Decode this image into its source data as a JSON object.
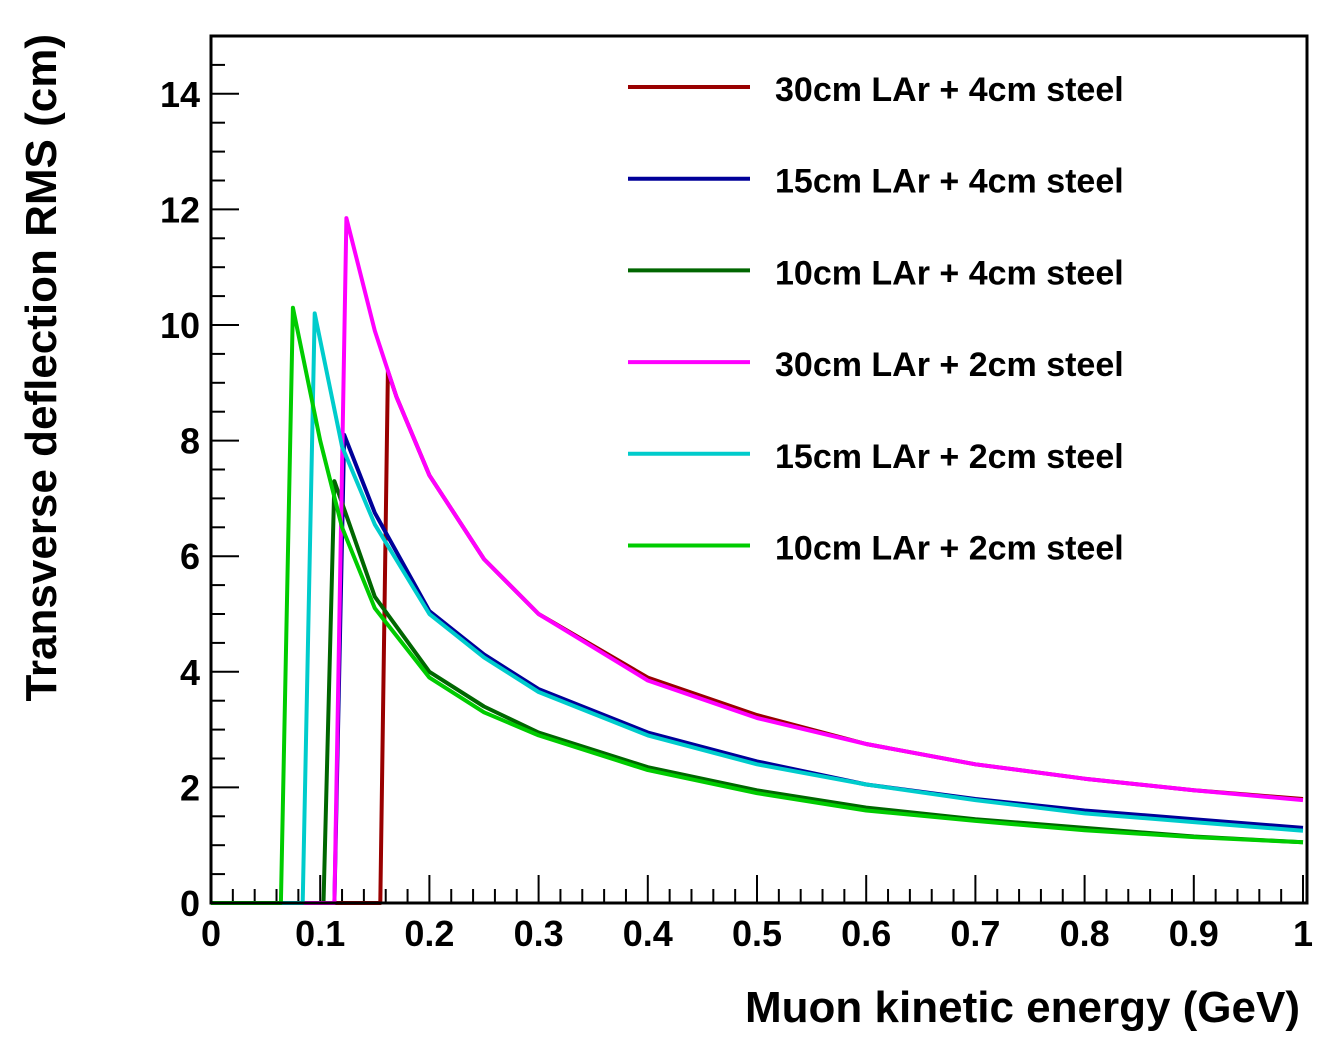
{
  "chart_data": {
    "type": "line",
    "title": "",
    "xlabel": "Muon kinetic energy (GeV)",
    "ylabel": "Transverse deflection RMS (cm)",
    "xlim": [
      0,
      1
    ],
    "ylim": [
      0,
      15
    ],
    "x_ticks": [
      0,
      0.1,
      0.2,
      0.3,
      0.4,
      0.5,
      0.6,
      0.7,
      0.8,
      0.9,
      1
    ],
    "x_tick_labels": [
      "0",
      "0.1",
      "0.2",
      "0.3",
      "0.4",
      "0.5",
      "0.6",
      "0.7",
      "0.8",
      "0.9",
      "1"
    ],
    "y_ticks": [
      0,
      2,
      4,
      6,
      8,
      10,
      12,
      14
    ],
    "y_tick_labels": [
      "0",
      "2",
      "4",
      "6",
      "8",
      "10",
      "12",
      "14"
    ],
    "grid": false,
    "legend_position": "top-right",
    "series": [
      {
        "name": "30cm LAr + 4cm steel",
        "color": "#990000",
        "x": [
          0.0,
          0.155,
          0.162,
          0.17,
          0.2,
          0.25,
          0.3,
          0.4,
          0.5,
          0.6,
          0.7,
          0.8,
          0.9,
          1.0
        ],
        "y": [
          0.0,
          0.0,
          9.2,
          8.75,
          7.4,
          5.95,
          5.0,
          3.9,
          3.25,
          2.75,
          2.4,
          2.15,
          1.95,
          1.8
        ]
      },
      {
        "name": "15cm LAr + 4cm steel",
        "color": "#000099",
        "x": [
          0.0,
          0.113,
          0.122,
          0.15,
          0.2,
          0.25,
          0.3,
          0.4,
          0.5,
          0.6,
          0.7,
          0.8,
          0.9,
          1.0
        ],
        "y": [
          0.0,
          0.0,
          8.1,
          6.75,
          5.05,
          4.3,
          3.7,
          2.95,
          2.45,
          2.05,
          1.8,
          1.6,
          1.45,
          1.3
        ]
      },
      {
        "name": "10cm LAr + 4cm steel",
        "color": "#006600",
        "x": [
          0.0,
          0.103,
          0.113,
          0.15,
          0.2,
          0.25,
          0.3,
          0.4,
          0.5,
          0.6,
          0.7,
          0.8,
          0.9,
          1.0
        ],
        "y": [
          0.0,
          0.0,
          7.3,
          5.3,
          4.0,
          3.4,
          2.95,
          2.35,
          1.95,
          1.65,
          1.45,
          1.3,
          1.15,
          1.05
        ]
      },
      {
        "name": "30cm LAr + 2cm steel",
        "color": "#ff00ff",
        "x": [
          0.0,
          0.113,
          0.124,
          0.15,
          0.17,
          0.2,
          0.25,
          0.3,
          0.4,
          0.5,
          0.6,
          0.7,
          0.8,
          0.9,
          1.0
        ],
        "y": [
          0.0,
          0.0,
          11.85,
          9.9,
          8.75,
          7.4,
          5.95,
          5.0,
          3.85,
          3.2,
          2.75,
          2.4,
          2.15,
          1.95,
          1.78
        ]
      },
      {
        "name": "15cm LAr + 2cm steel",
        "color": "#00cccc",
        "x": [
          0.0,
          0.084,
          0.095,
          0.12,
          0.15,
          0.2,
          0.25,
          0.3,
          0.4,
          0.5,
          0.6,
          0.7,
          0.8,
          0.9,
          1.0
        ],
        "y": [
          0.0,
          0.0,
          10.2,
          7.9,
          6.55,
          5.0,
          4.25,
          3.65,
          2.9,
          2.4,
          2.05,
          1.78,
          1.55,
          1.4,
          1.25
        ]
      },
      {
        "name": "10cm LAr + 2cm steel",
        "color": "#00cc00",
        "x": [
          0.0,
          0.064,
          0.075,
          0.1,
          0.12,
          0.15,
          0.2,
          0.25,
          0.3,
          0.4,
          0.5,
          0.6,
          0.7,
          0.8,
          0.9,
          1.0
        ],
        "y": [
          0.0,
          0.0,
          10.3,
          8.0,
          6.5,
          5.1,
          3.9,
          3.3,
          2.9,
          2.3,
          1.9,
          1.6,
          1.42,
          1.26,
          1.14,
          1.05
        ]
      }
    ]
  }
}
